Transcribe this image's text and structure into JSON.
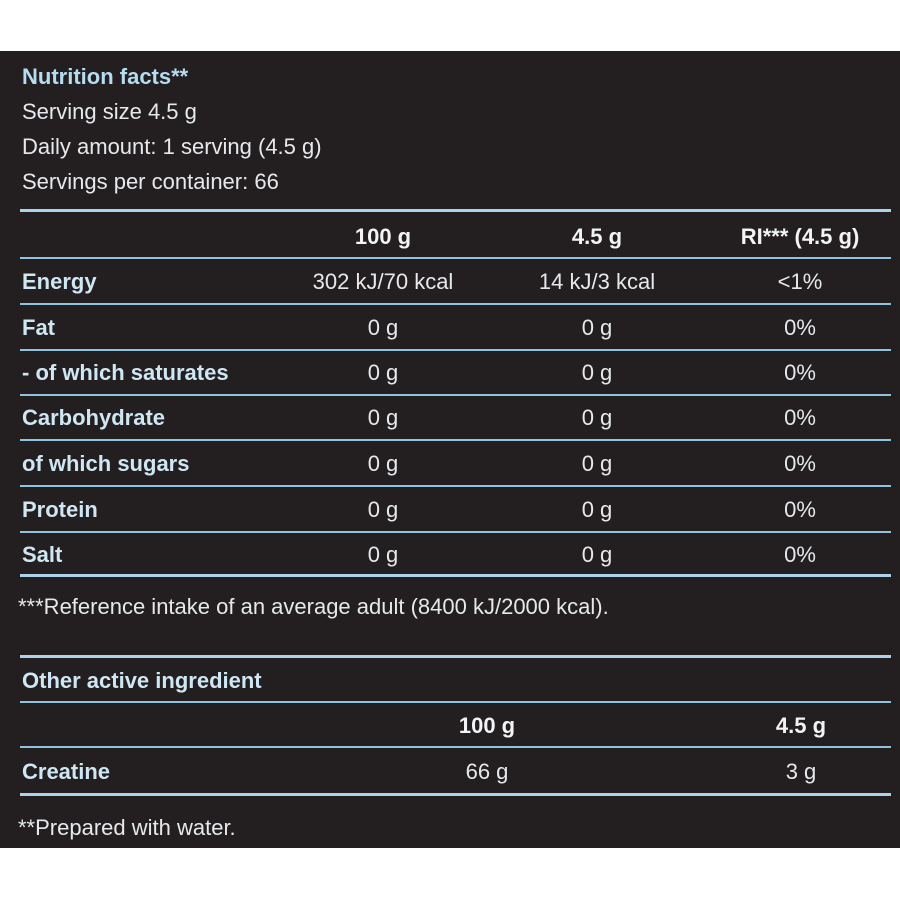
{
  "header": {
    "title": "Nutrition facts**",
    "serving_size": "Serving size 4.5 g",
    "daily_amount": "Daily amount: 1 serving (4.5 g)",
    "servings_per_container": "Servings per container: 66"
  },
  "nutrition": {
    "columns": [
      "100 g",
      "4.5 g",
      "RI*** (4.5 g)"
    ],
    "rows": [
      {
        "label": "Energy",
        "per100": "302 kJ/70 kcal",
        "perServing": "14 kJ/3 kcal",
        "ri": "<1%"
      },
      {
        "label": "Fat",
        "per100": "0 g",
        "perServing": "0 g",
        "ri": "0%"
      },
      {
        "label": "- of which saturates",
        "per100": "0 g",
        "perServing": "0 g",
        "ri": "0%"
      },
      {
        "label": "Carbohydrate",
        "per100": "0 g",
        "perServing": "0 g",
        "ri": "0%"
      },
      {
        "label": "of which sugars",
        "per100": "0 g",
        "perServing": "0 g",
        "ri": "0%"
      },
      {
        "label": "Protein",
        "per100": "0 g",
        "perServing": "0 g",
        "ri": "0%"
      },
      {
        "label": "Salt",
        "per100": "0 g",
        "perServing": "0 g",
        "ri": "0%"
      }
    ],
    "footnote": "***Reference intake of an average adult (8400 kJ/2000 kcal)."
  },
  "active": {
    "title": "Other active ingredient",
    "columns": [
      "100 g",
      "4.5 g"
    ],
    "rows": [
      {
        "label": "Creatine",
        "per100": "66 g",
        "perServing": "3 g"
      }
    ]
  },
  "footer_note": "**Prepared with water.",
  "colors": {
    "panel": "#231f20",
    "rule": "#a9d3ea",
    "label": "#cfe6f3"
  }
}
